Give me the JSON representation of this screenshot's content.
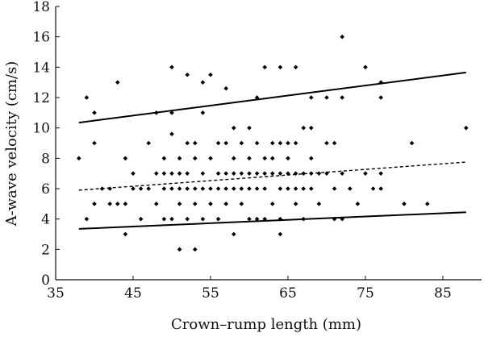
{
  "chart_data": {
    "type": "scatter",
    "xlabel": "Crown–rump length (mm)",
    "ylabel": "A-wave velocity (cm/s)",
    "xlim": [
      35,
      90
    ],
    "ylim": [
      0,
      18
    ],
    "xticks": [
      35,
      45,
      55,
      65,
      75,
      85
    ],
    "yticks": [
      0,
      2,
      4,
      6,
      8,
      10,
      12,
      14,
      16,
      18
    ],
    "grid": false,
    "legend": "none",
    "points": [
      [
        38,
        8
      ],
      [
        39,
        12
      ],
      [
        39,
        4
      ],
      [
        40,
        11
      ],
      [
        40,
        9
      ],
      [
        40,
        5
      ],
      [
        41,
        6
      ],
      [
        42,
        6
      ],
      [
        42,
        5
      ],
      [
        43,
        13
      ],
      [
        43,
        5
      ],
      [
        44,
        8
      ],
      [
        44,
        3
      ],
      [
        44,
        5
      ],
      [
        45,
        6
      ],
      [
        45,
        7
      ],
      [
        46,
        6
      ],
      [
        46,
        4
      ],
      [
        47,
        6
      ],
      [
        47,
        9
      ],
      [
        48,
        11
      ],
      [
        48,
        7
      ],
      [
        48,
        5
      ],
      [
        49,
        4
      ],
      [
        49,
        8
      ],
      [
        49,
        6
      ],
      [
        49,
        7
      ],
      [
        50,
        14
      ],
      [
        50,
        11
      ],
      [
        50,
        9.6
      ],
      [
        50,
        7
      ],
      [
        50,
        6
      ],
      [
        50,
        4
      ],
      [
        51,
        8
      ],
      [
        51,
        7
      ],
      [
        51,
        6
      ],
      [
        51,
        5
      ],
      [
        51,
        2
      ],
      [
        52,
        13.5
      ],
      [
        52,
        9
      ],
      [
        52,
        7
      ],
      [
        52,
        6
      ],
      [
        52,
        4
      ],
      [
        53,
        2
      ],
      [
        53,
        8
      ],
      [
        53,
        9
      ],
      [
        53,
        6
      ],
      [
        53,
        5
      ],
      [
        54,
        13
      ],
      [
        54,
        11
      ],
      [
        54,
        7
      ],
      [
        54,
        6
      ],
      [
        54,
        4
      ],
      [
        55,
        13.5
      ],
      [
        55,
        8
      ],
      [
        55,
        6
      ],
      [
        55,
        5
      ],
      [
        56,
        9
      ],
      [
        56,
        7
      ],
      [
        56,
        6
      ],
      [
        56,
        4
      ],
      [
        57,
        12.6
      ],
      [
        57,
        9
      ],
      [
        57,
        7
      ],
      [
        57,
        6
      ],
      [
        57,
        5
      ],
      [
        58,
        10
      ],
      [
        58,
        8
      ],
      [
        58,
        7
      ],
      [
        58,
        6
      ],
      [
        58,
        3
      ],
      [
        59,
        9
      ],
      [
        59,
        7
      ],
      [
        59,
        6
      ],
      [
        59,
        5
      ],
      [
        60,
        10
      ],
      [
        60,
        8
      ],
      [
        60,
        7
      ],
      [
        60,
        6
      ],
      [
        60,
        4
      ],
      [
        61,
        12
      ],
      [
        61,
        9
      ],
      [
        61,
        7
      ],
      [
        61,
        6
      ],
      [
        61,
        4
      ],
      [
        62,
        14
      ],
      [
        62,
        8
      ],
      [
        62,
        7
      ],
      [
        62,
        6
      ],
      [
        62,
        4
      ],
      [
        63,
        9
      ],
      [
        63,
        8
      ],
      [
        63,
        7
      ],
      [
        63,
        5
      ],
      [
        64,
        14
      ],
      [
        64,
        9
      ],
      [
        64,
        7
      ],
      [
        64,
        6
      ],
      [
        64,
        4
      ],
      [
        64,
        3
      ],
      [
        65,
        9
      ],
      [
        65,
        8
      ],
      [
        65,
        7
      ],
      [
        65,
        6
      ],
      [
        66,
        14
      ],
      [
        66,
        9
      ],
      [
        66,
        7
      ],
      [
        66,
        6
      ],
      [
        66,
        5
      ],
      [
        67,
        10
      ],
      [
        67,
        7
      ],
      [
        67,
        6
      ],
      [
        67,
        4
      ],
      [
        68,
        12
      ],
      [
        68,
        10
      ],
      [
        68,
        8
      ],
      [
        68,
        7
      ],
      [
        68,
        6
      ],
      [
        69,
        7
      ],
      [
        69,
        5
      ],
      [
        70,
        12
      ],
      [
        70,
        9
      ],
      [
        70,
        7
      ],
      [
        71,
        9
      ],
      [
        71,
        6
      ],
      [
        71,
        4
      ],
      [
        72,
        16
      ],
      [
        72,
        12
      ],
      [
        72,
        7
      ],
      [
        72,
        4
      ],
      [
        73,
        6
      ],
      [
        74,
        5
      ],
      [
        75,
        14
      ],
      [
        75,
        7
      ],
      [
        76,
        6
      ],
      [
        77,
        13
      ],
      [
        77,
        12
      ],
      [
        77,
        7
      ],
      [
        77,
        6
      ],
      [
        80,
        5
      ],
      [
        81,
        9
      ],
      [
        83,
        5
      ],
      [
        88,
        10
      ]
    ],
    "lines": [
      {
        "style": "solid",
        "x": [
          38,
          88
        ],
        "y": [
          10.35,
          13.65
        ]
      },
      {
        "style": "dashed",
        "x": [
          38,
          88
        ],
        "y": [
          5.9,
          7.75
        ]
      },
      {
        "style": "solid",
        "x": [
          38,
          88
        ],
        "y": [
          3.35,
          4.45
        ]
      }
    ]
  }
}
